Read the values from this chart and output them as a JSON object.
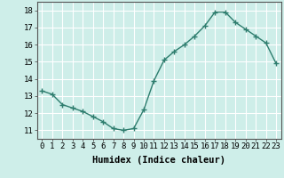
{
  "x": [
    0,
    1,
    2,
    3,
    4,
    5,
    6,
    7,
    8,
    9,
    10,
    11,
    12,
    13,
    14,
    15,
    16,
    17,
    18,
    19,
    20,
    21,
    22,
    23
  ],
  "y": [
    13.3,
    13.1,
    12.5,
    12.3,
    12.1,
    11.8,
    11.5,
    11.1,
    11.0,
    11.1,
    12.2,
    13.9,
    15.1,
    15.6,
    16.0,
    16.5,
    17.1,
    17.9,
    17.9,
    17.3,
    16.9,
    16.5,
    16.1,
    14.9
  ],
  "line_color": "#2e7d6e",
  "marker": "+",
  "marker_size": 4,
  "line_width": 1.0,
  "xlabel": "Humidex (Indice chaleur)",
  "xlabel_fontsize": 7.5,
  "xlim": [
    -0.5,
    23.5
  ],
  "ylim": [
    10.5,
    18.5
  ],
  "yticks": [
    11,
    12,
    13,
    14,
    15,
    16,
    17,
    18
  ],
  "xtick_labels": [
    "0",
    "1",
    "2",
    "3",
    "4",
    "5",
    "6",
    "7",
    "8",
    "9",
    "10",
    "11",
    "12",
    "13",
    "14",
    "15",
    "16",
    "17",
    "18",
    "19",
    "20",
    "21",
    "22",
    "23"
  ],
  "background_color": "#ceeee9",
  "grid_color": "#ffffff",
  "tick_fontsize": 6.5,
  "spine_color": "#555555"
}
